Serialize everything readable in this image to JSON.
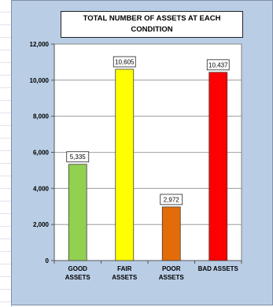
{
  "chart_data": {
    "type": "bar",
    "title_lines": [
      "TOTAL NUMBER OF ASSETS AT EACH",
      "CONDITION"
    ],
    "categories": [
      [
        "GOOD",
        "ASSETS"
      ],
      [
        "FAIR",
        "ASSETS"
      ],
      [
        "POOR",
        "ASSETS"
      ],
      [
        "BAD ASSETS"
      ]
    ],
    "values": [
      5335,
      10605,
      2972,
      10437
    ],
    "value_labels": [
      "5,335",
      "10,605",
      "2,972",
      "10,437"
    ],
    "bar_colors": [
      "#92d050",
      "#ffff00",
      "#e36c09",
      "#ff0000"
    ],
    "ylim": [
      0,
      12000
    ],
    "yticks": [
      0,
      2000,
      4000,
      6000,
      8000,
      10000,
      12000
    ],
    "ytick_labels": [
      "0",
      "2,000",
      "4,000",
      "6,000",
      "8,000",
      "10,000",
      "12,000"
    ],
    "grid": true,
    "legend": false,
    "background_color": "#b9cde5",
    "plot_background": "#ffffff"
  }
}
